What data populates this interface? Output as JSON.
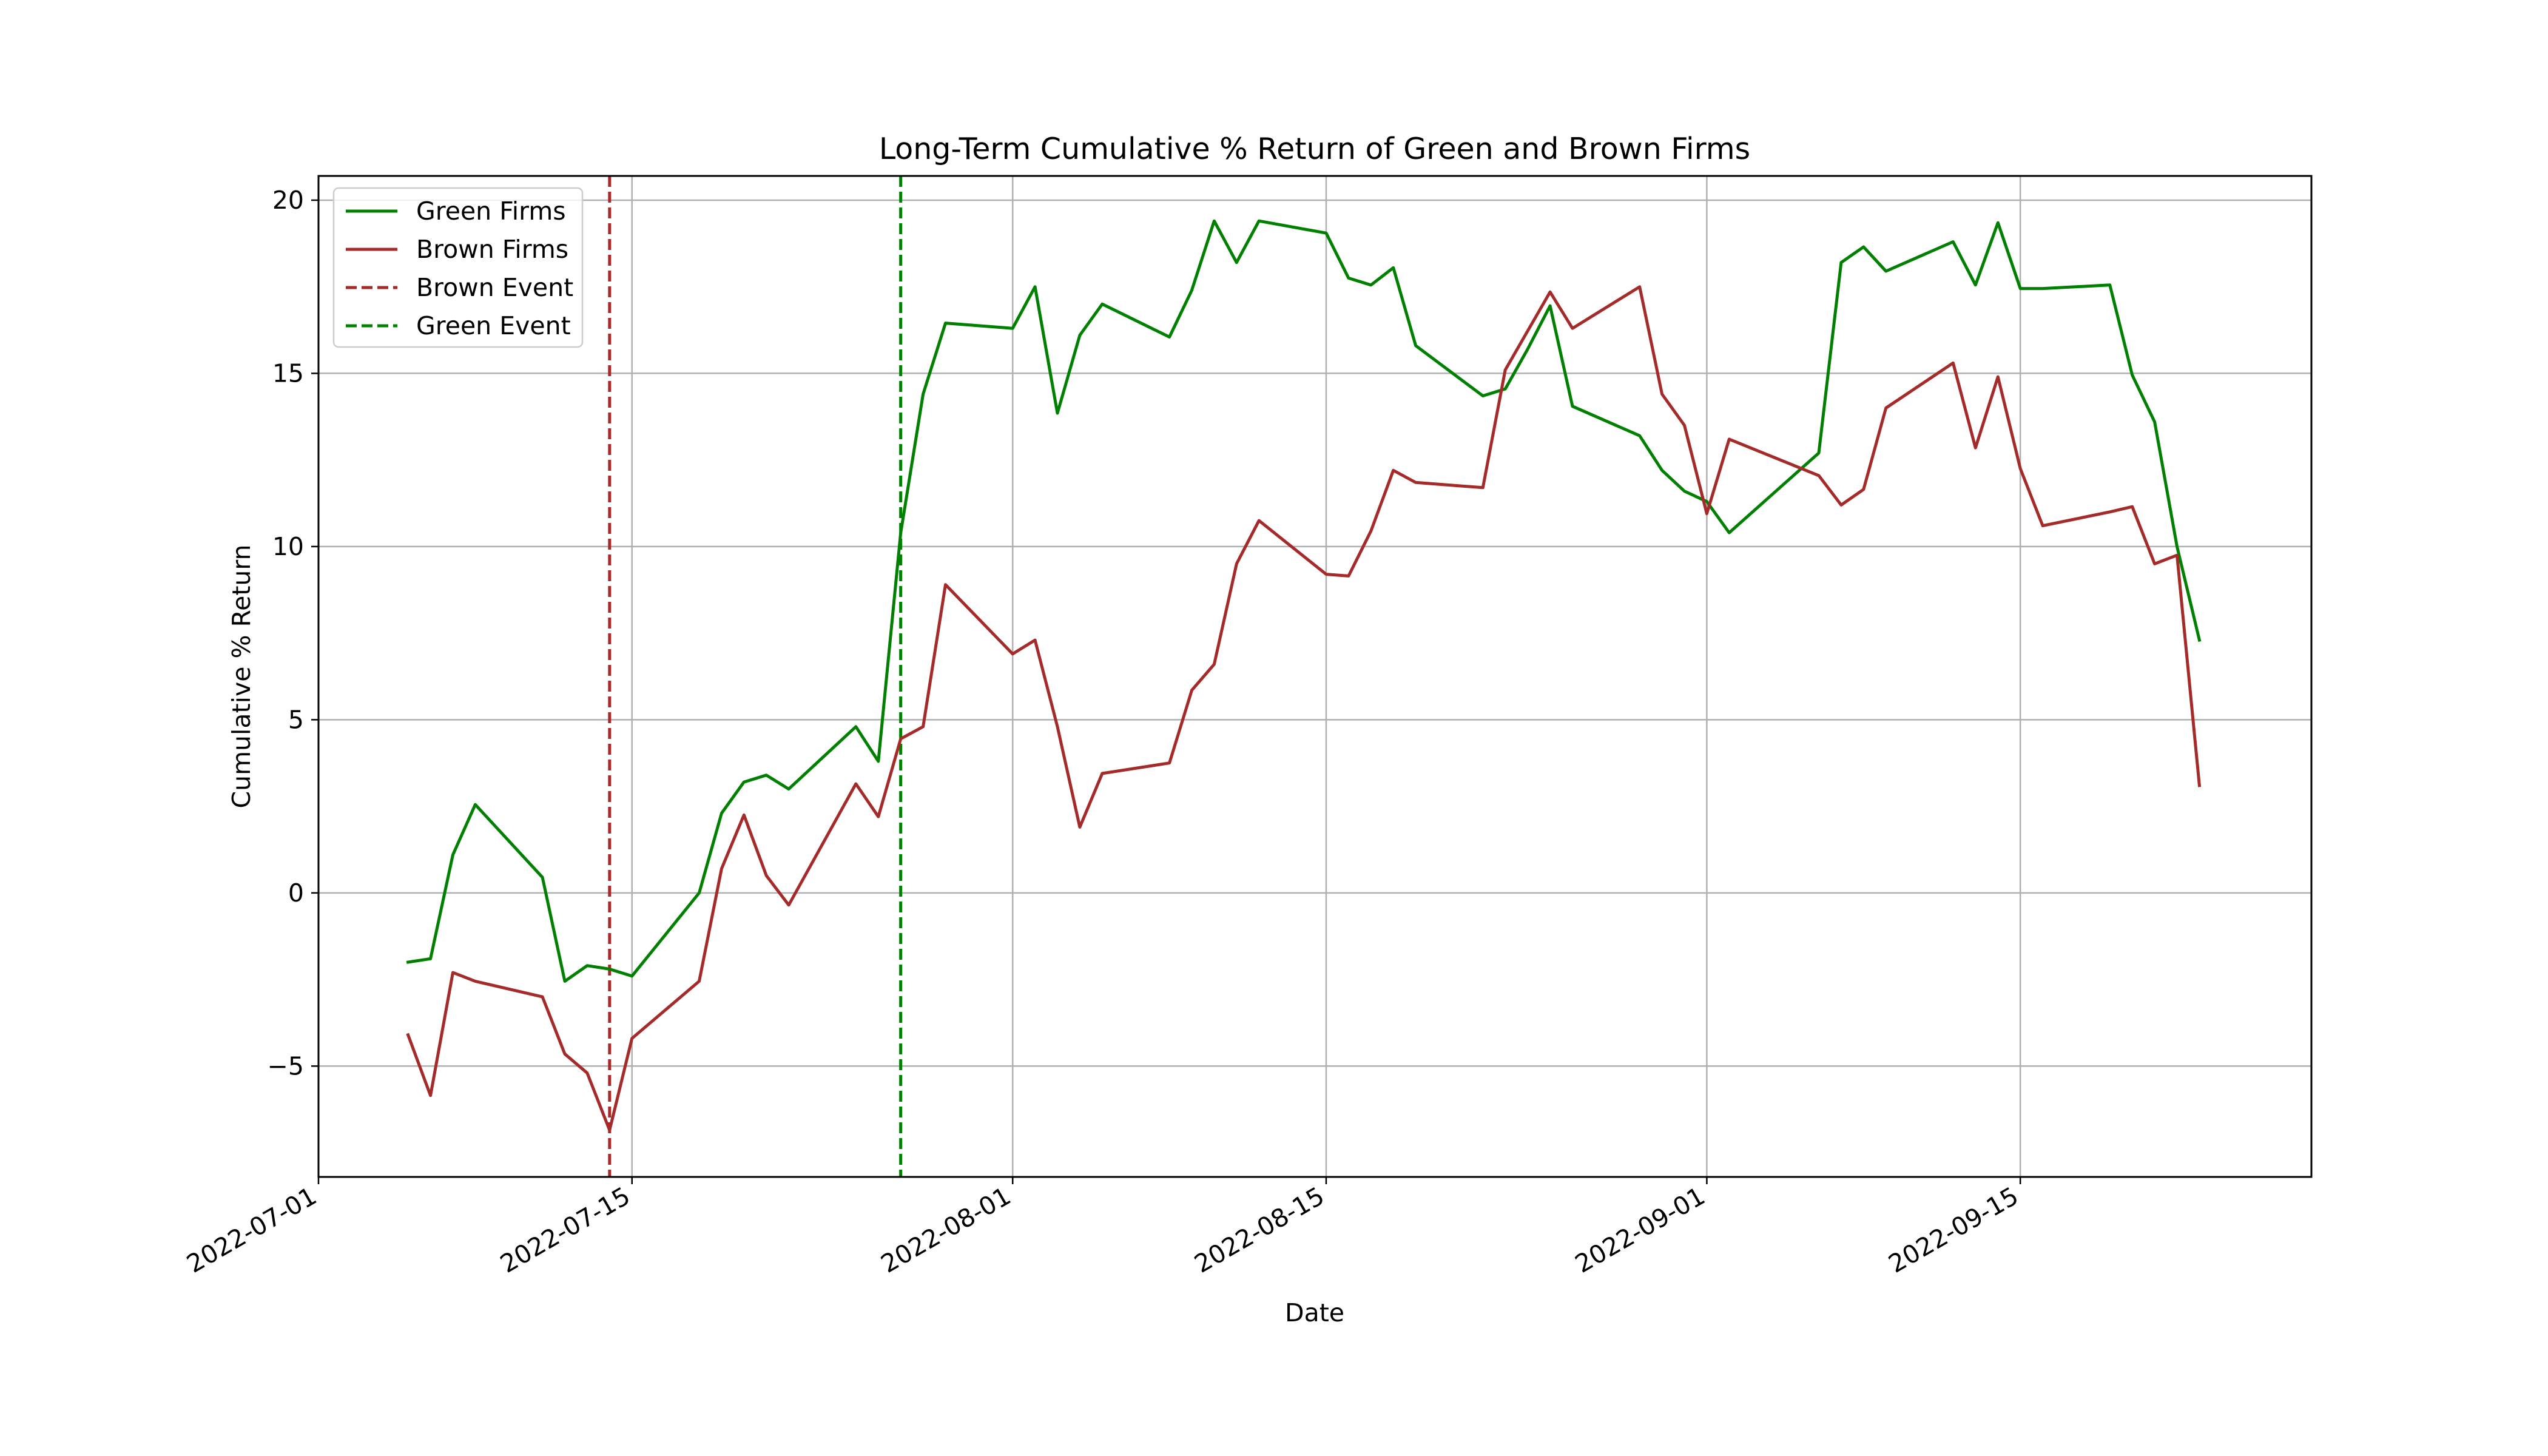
{
  "chart_data": {
    "type": "line",
    "title": "Long-Term Cumulative % Return of Green and Brown Firms",
    "xlabel": "Date",
    "ylabel": "Cumulative % Return",
    "xlim": [
      "2022-07-01",
      "2022-09-28"
    ],
    "ylim": [
      -8.2,
      20.7
    ],
    "x_ticks": [
      "2022-07-01",
      "2022-07-15",
      "2022-08-01",
      "2022-08-15",
      "2022-09-01",
      "2022-09-15"
    ],
    "y_ticks": [
      20,
      15,
      10,
      5,
      0,
      -5
    ],
    "grid": true,
    "legend_position": "top-left",
    "colors": {
      "green": "#008000",
      "brown": "#a52a2a"
    },
    "series": [
      {
        "name": "Green Firms",
        "color": "#008000",
        "style": "solid",
        "points": [
          [
            "2022-07-05",
            -2.0
          ],
          [
            "2022-07-06",
            -1.9
          ],
          [
            "2022-07-07",
            1.1
          ],
          [
            "2022-07-08",
            2.55
          ],
          [
            "2022-07-11",
            0.45
          ],
          [
            "2022-07-12",
            -2.55
          ],
          [
            "2022-07-13",
            -2.1
          ],
          [
            "2022-07-14",
            -2.2
          ],
          [
            "2022-07-15",
            -2.4
          ],
          [
            "2022-07-18",
            0.0
          ],
          [
            "2022-07-19",
            2.3
          ],
          [
            "2022-07-20",
            3.2
          ],
          [
            "2022-07-21",
            3.4
          ],
          [
            "2022-07-22",
            3.0
          ],
          [
            "2022-07-25",
            4.8
          ],
          [
            "2022-07-26",
            3.8
          ],
          [
            "2022-07-27",
            10.4
          ],
          [
            "2022-07-28",
            14.4
          ],
          [
            "2022-07-29",
            16.45
          ],
          [
            "2022-08-01",
            16.3
          ],
          [
            "2022-08-02",
            17.5
          ],
          [
            "2022-08-03",
            13.85
          ],
          [
            "2022-08-04",
            16.1
          ],
          [
            "2022-08-05",
            17.0
          ],
          [
            "2022-08-08",
            16.05
          ],
          [
            "2022-08-09",
            17.4
          ],
          [
            "2022-08-10",
            19.4
          ],
          [
            "2022-08-11",
            18.2
          ],
          [
            "2022-08-12",
            19.4
          ],
          [
            "2022-08-15",
            19.05
          ],
          [
            "2022-08-16",
            17.75
          ],
          [
            "2022-08-17",
            17.55
          ],
          [
            "2022-08-18",
            18.05
          ],
          [
            "2022-08-19",
            15.8
          ],
          [
            "2022-08-22",
            14.35
          ],
          [
            "2022-08-23",
            14.55
          ],
          [
            "2022-08-24",
            15.7
          ],
          [
            "2022-08-25",
            16.95
          ],
          [
            "2022-08-26",
            14.05
          ],
          [
            "2022-08-29",
            13.2
          ],
          [
            "2022-08-30",
            12.2
          ],
          [
            "2022-08-31",
            11.6
          ],
          [
            "2022-09-01",
            11.3
          ],
          [
            "2022-09-02",
            10.4
          ],
          [
            "2022-09-06",
            12.7
          ],
          [
            "2022-09-07",
            18.2
          ],
          [
            "2022-09-08",
            18.65
          ],
          [
            "2022-09-09",
            17.95
          ],
          [
            "2022-09-12",
            18.8
          ],
          [
            "2022-09-13",
            17.55
          ],
          [
            "2022-09-14",
            19.35
          ],
          [
            "2022-09-15",
            17.45
          ],
          [
            "2022-09-16",
            17.45
          ],
          [
            "2022-09-19",
            17.55
          ],
          [
            "2022-09-20",
            14.95
          ],
          [
            "2022-09-21",
            13.6
          ],
          [
            "2022-09-22",
            10.0
          ],
          [
            "2022-09-23",
            7.3
          ]
        ]
      },
      {
        "name": "Brown Firms",
        "color": "#a52a2a",
        "style": "solid",
        "points": [
          [
            "2022-07-05",
            -4.1
          ],
          [
            "2022-07-06",
            -5.85
          ],
          [
            "2022-07-07",
            -2.3
          ],
          [
            "2022-07-08",
            -2.55
          ],
          [
            "2022-07-11",
            -3.0
          ],
          [
            "2022-07-12",
            -4.65
          ],
          [
            "2022-07-13",
            -5.2
          ],
          [
            "2022-07-14",
            -6.85
          ],
          [
            "2022-07-15",
            -4.2
          ],
          [
            "2022-07-18",
            -2.55
          ],
          [
            "2022-07-19",
            0.7
          ],
          [
            "2022-07-20",
            2.25
          ],
          [
            "2022-07-21",
            0.5
          ],
          [
            "2022-07-22",
            -0.35
          ],
          [
            "2022-07-25",
            3.15
          ],
          [
            "2022-07-26",
            2.2
          ],
          [
            "2022-07-27",
            4.45
          ],
          [
            "2022-07-28",
            4.8
          ],
          [
            "2022-07-29",
            8.9
          ],
          [
            "2022-08-01",
            6.9
          ],
          [
            "2022-08-02",
            7.3
          ],
          [
            "2022-08-03",
            4.8
          ],
          [
            "2022-08-04",
            1.9
          ],
          [
            "2022-08-05",
            3.45
          ],
          [
            "2022-08-08",
            3.75
          ],
          [
            "2022-08-09",
            5.85
          ],
          [
            "2022-08-10",
            6.6
          ],
          [
            "2022-08-11",
            9.5
          ],
          [
            "2022-08-12",
            10.75
          ],
          [
            "2022-08-15",
            9.2
          ],
          [
            "2022-08-16",
            9.15
          ],
          [
            "2022-08-17",
            10.45
          ],
          [
            "2022-08-18",
            12.2
          ],
          [
            "2022-08-19",
            11.85
          ],
          [
            "2022-08-22",
            11.7
          ],
          [
            "2022-08-23",
            15.1
          ],
          [
            "2022-08-25",
            17.35
          ],
          [
            "2022-08-26",
            16.3
          ],
          [
            "2022-08-29",
            17.5
          ],
          [
            "2022-08-30",
            14.4
          ],
          [
            "2022-08-31",
            13.5
          ],
          [
            "2022-09-01",
            10.95
          ],
          [
            "2022-09-02",
            13.1
          ],
          [
            "2022-09-06",
            12.05
          ],
          [
            "2022-09-07",
            11.2
          ],
          [
            "2022-09-08",
            11.65
          ],
          [
            "2022-09-09",
            14.0
          ],
          [
            "2022-09-12",
            15.3
          ],
          [
            "2022-09-13",
            12.85
          ],
          [
            "2022-09-14",
            14.9
          ],
          [
            "2022-09-15",
            12.25
          ],
          [
            "2022-09-16",
            10.6
          ],
          [
            "2022-09-19",
            11.0
          ],
          [
            "2022-09-20",
            11.15
          ],
          [
            "2022-09-21",
            9.5
          ],
          [
            "2022-09-22",
            9.75
          ],
          [
            "2022-09-23",
            3.1
          ]
        ]
      }
    ],
    "events": [
      {
        "name": "Brown Event",
        "x": "2022-07-14",
        "color": "#a52a2a",
        "style": "dashed"
      },
      {
        "name": "Green Event",
        "x": "2022-07-27",
        "color": "#008000",
        "style": "dashed"
      }
    ],
    "legend": [
      {
        "label": "Green Firms",
        "color": "#008000",
        "style": "solid"
      },
      {
        "label": "Brown Firms",
        "color": "#a52a2a",
        "style": "solid"
      },
      {
        "label": "Brown Event",
        "color": "#a52a2a",
        "style": "dashed"
      },
      {
        "label": "Green Event",
        "color": "#008000",
        "style": "dashed"
      }
    ]
  }
}
